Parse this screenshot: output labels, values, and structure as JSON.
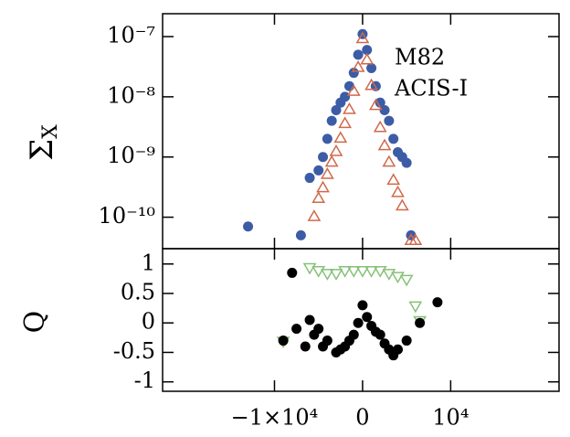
{
  "chart_data": [
    {
      "type": "scatter",
      "ylabel": "Σ",
      "ylabel_subscript": "X",
      "yscale": "log",
      "annotations": [
        "M82",
        "ACIS-I"
      ],
      "xlim": [
        -22700,
        22300
      ],
      "ylim": [
        3e-11,
        2.4e-07
      ],
      "yticks": [
        {
          "value": 1e-07,
          "label": "10⁻⁷"
        },
        {
          "value": 1e-08,
          "label": "10⁻⁸"
        },
        {
          "value": 1e-09,
          "label": "10⁻⁹"
        },
        {
          "value": 1e-10,
          "label": "10⁻¹⁰"
        }
      ],
      "series": [
        {
          "color": "#3d5ca6",
          "marker": "circle",
          "x": [
            -13000,
            -7000,
            -6000,
            -5000,
            -4500,
            -4000,
            -3500,
            -3000,
            -2500,
            -2000,
            -1500,
            -1000,
            -500,
            0,
            500,
            1000,
            1500,
            2000,
            2500,
            3000,
            3500,
            4000,
            4500,
            5000,
            5500
          ],
          "values": [
            7e-11,
            5e-11,
            4.5e-10,
            6e-10,
            1e-09,
            2e-09,
            4e-09,
            6e-09,
            8e-09,
            1e-08,
            1.5e-08,
            2.5e-08,
            5e-08,
            1.1e-07,
            6e-08,
            3e-08,
            1.5e-08,
            8e-09,
            6e-09,
            4e-09,
            2e-09,
            1.2e-09,
            1e-09,
            8e-10,
            5e-11
          ]
        },
        {
          "color": "#d0694a",
          "marker": "triangle_up",
          "x": [
            -5500,
            -5000,
            -4500,
            -4000,
            -3500,
            -3000,
            -2500,
            -2000,
            -1500,
            -1000,
            -500,
            0,
            500,
            1000,
            1500,
            2000,
            2500,
            3000,
            3500,
            4000,
            4500,
            5500,
            6000
          ],
          "values": [
            1e-10,
            2e-10,
            3e-10,
            5e-10,
            8e-10,
            1.2e-09,
            2e-09,
            3.5e-09,
            6e-09,
            1.2e-08,
            3e-08,
            9e-08,
            4e-08,
            1.5e-08,
            7e-09,
            3e-09,
            1.5e-09,
            8e-10,
            4e-10,
            2.5e-10,
            1.5e-10,
            4e-11,
            4e-11
          ]
        }
      ]
    },
    {
      "type": "scatter",
      "ylabel": "Q",
      "xlim": [
        -22700,
        22300
      ],
      "ylim": [
        -1.16,
        1.26
      ],
      "xticks": [
        {
          "value": -10000,
          "label": "−1×10⁴"
        },
        0,
        {
          "value": 10000,
          "label": "10⁴"
        }
      ],
      "yticks": [
        1,
        0.5,
        0,
        -0.5,
        -1
      ],
      "series": [
        {
          "color": "#86c178",
          "marker": "triangle_down",
          "x": [
            -9000,
            -6000,
            -5000,
            -4000,
            -3000,
            -2000,
            -1000,
            0,
            1000,
            2000,
            3000,
            4000,
            5000,
            6000,
            6500
          ],
          "values": [
            -0.3,
            0.95,
            0.9,
            0.85,
            0.85,
            0.9,
            0.9,
            0.9,
            0.9,
            0.9,
            0.85,
            0.8,
            0.75,
            0.3,
            0.05
          ]
        },
        {
          "color": "#000000",
          "marker": "circle",
          "x": [
            -9000,
            -8000,
            -7500,
            -6500,
            -6000,
            -5500,
            -5000,
            -4500,
            -4000,
            -3000,
            -2500,
            -2000,
            -1500,
            -1000,
            -500,
            0,
            500,
            1000,
            1500,
            2000,
            2500,
            3000,
            3500,
            4000,
            5000,
            6500,
            8500
          ],
          "values": [
            -0.3,
            0.85,
            -0.1,
            -0.4,
            0.05,
            -0.2,
            -0.1,
            -0.4,
            -0.3,
            -0.5,
            -0.45,
            -0.4,
            -0.3,
            -0.2,
            0,
            0.3,
            0.1,
            -0.05,
            -0.15,
            -0.2,
            -0.35,
            -0.45,
            -0.55,
            -0.45,
            -0.3,
            0,
            0.35
          ]
        }
      ]
    }
  ]
}
